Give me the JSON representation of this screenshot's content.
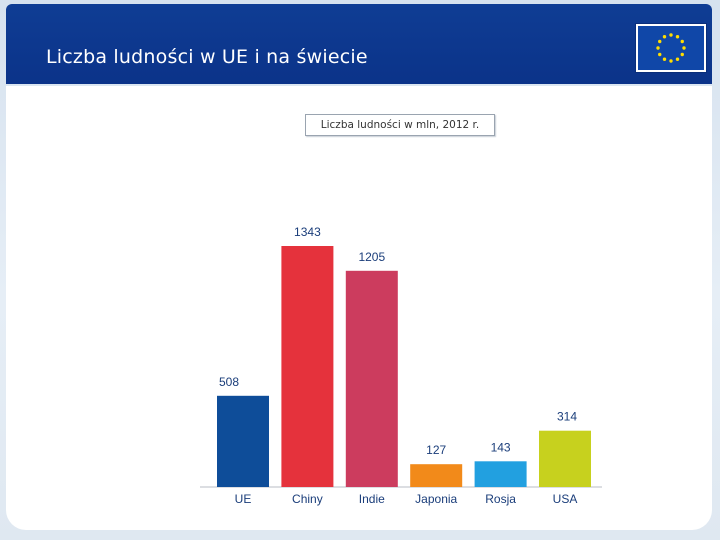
{
  "header": {
    "title": "Liczba ludności w UE i na świecie"
  },
  "logo": {
    "icon": "eu-flag-icon"
  },
  "chart_data": {
    "type": "bar",
    "title": "Liczba ludności w mln, 2012 r.",
    "categories": [
      "UE",
      "Chiny",
      "Indie",
      "Japonia",
      "Rosja",
      "USA"
    ],
    "values": [
      508,
      1343,
      1205,
      127,
      143,
      314
    ],
    "value_labels": [
      "508",
      "1343",
      "1205",
      "127",
      "143",
      "314"
    ],
    "colors": [
      "#0e4d99",
      "#e5323c",
      "#cc3c5e",
      "#f28a1a",
      "#22a0e0",
      "#c7d11e"
    ],
    "xlabel": "",
    "ylabel": "",
    "ylim": [
      0,
      1343
    ],
    "grid": false
  }
}
